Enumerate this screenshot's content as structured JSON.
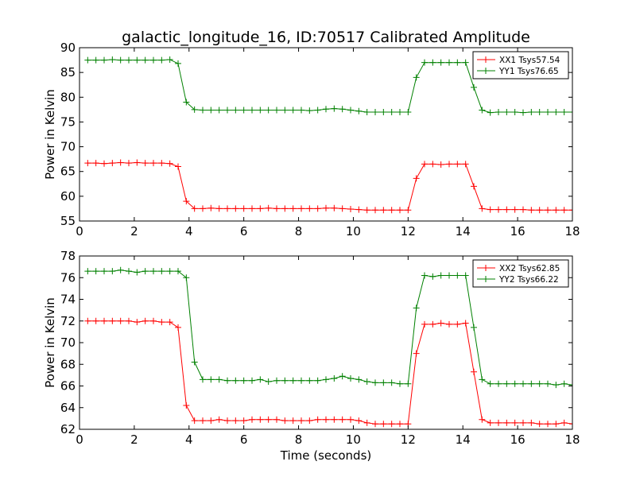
{
  "figure": {
    "title": "galactic_longitude_16, ID:70517 Calibrated Amplitude",
    "xlabel": "Time (seconds)"
  },
  "chart_data": [
    {
      "type": "line",
      "title": "galactic_longitude_16, ID:70517 Calibrated Amplitude",
      "xlabel": "",
      "ylabel": "Power in Kelvin",
      "xlim": [
        0,
        18
      ],
      "ylim": [
        55,
        90
      ],
      "xticks": [
        0,
        2,
        4,
        6,
        8,
        10,
        12,
        14,
        16,
        18
      ],
      "yticks": [
        55,
        60,
        65,
        70,
        75,
        80,
        85,
        90
      ],
      "legend_placement": "top-right",
      "marker": "+",
      "grid": false,
      "x": [
        0.3,
        0.6,
        0.9,
        1.2,
        1.5,
        1.8,
        2.1,
        2.4,
        2.7,
        3.0,
        3.3,
        3.6,
        3.9,
        4.2,
        4.5,
        4.8,
        5.1,
        5.4,
        5.7,
        6.0,
        6.3,
        6.6,
        6.9,
        7.2,
        7.5,
        7.8,
        8.1,
        8.4,
        8.7,
        9.0,
        9.3,
        9.6,
        9.9,
        10.2,
        10.5,
        10.8,
        11.1,
        11.4,
        11.7,
        12.0,
        12.3,
        12.6,
        12.9,
        13.2,
        13.5,
        13.8,
        14.1,
        14.4,
        14.7,
        15.0,
        15.3,
        15.6,
        15.9,
        16.2,
        16.5,
        16.8,
        17.1,
        17.4,
        17.7,
        18.0
      ],
      "series": [
        {
          "name": "XX1 Tsys57.54",
          "color": "#ff0000",
          "values": [
            66.7,
            66.7,
            66.6,
            66.7,
            66.8,
            66.7,
            66.8,
            66.7,
            66.7,
            66.7,
            66.6,
            66.0,
            59.0,
            57.5,
            57.5,
            57.6,
            57.5,
            57.5,
            57.5,
            57.5,
            57.5,
            57.5,
            57.6,
            57.5,
            57.5,
            57.5,
            57.5,
            57.5,
            57.5,
            57.6,
            57.6,
            57.5,
            57.4,
            57.3,
            57.2,
            57.2,
            57.2,
            57.2,
            57.2,
            57.2,
            63.6,
            66.5,
            66.5,
            66.4,
            66.5,
            66.5,
            66.5,
            62.0,
            57.5,
            57.3,
            57.3,
            57.3,
            57.3,
            57.3,
            57.2,
            57.2,
            57.2,
            57.2,
            57.2,
            57.2
          ]
        },
        {
          "name": "YY1 Tsys76.65",
          "color": "#008000",
          "values": [
            87.5,
            87.5,
            87.5,
            87.6,
            87.5,
            87.5,
            87.5,
            87.5,
            87.5,
            87.5,
            87.6,
            86.8,
            79.0,
            77.5,
            77.4,
            77.4,
            77.4,
            77.4,
            77.4,
            77.4,
            77.4,
            77.4,
            77.4,
            77.4,
            77.4,
            77.4,
            77.4,
            77.3,
            77.4,
            77.6,
            77.7,
            77.6,
            77.4,
            77.2,
            77.0,
            77.0,
            77.0,
            77.0,
            77.0,
            77.0,
            84.0,
            87.0,
            87.0,
            87.0,
            87.0,
            87.0,
            87.0,
            82.0,
            77.4,
            76.9,
            77.0,
            77.0,
            77.0,
            76.9,
            77.0,
            77.0,
            77.0,
            77.0,
            77.0,
            77.0
          ]
        }
      ]
    },
    {
      "type": "line",
      "title": "",
      "xlabel": "Time (seconds)",
      "ylabel": "Power in Kelvin",
      "xlim": [
        0,
        18
      ],
      "ylim": [
        62,
        78
      ],
      "xticks": [
        0,
        2,
        4,
        6,
        8,
        10,
        12,
        14,
        16,
        18
      ],
      "yticks": [
        62,
        64,
        66,
        68,
        70,
        72,
        74,
        76,
        78
      ],
      "legend_placement": "top-right",
      "marker": "+",
      "grid": false,
      "x": [
        0.3,
        0.6,
        0.9,
        1.2,
        1.5,
        1.8,
        2.1,
        2.4,
        2.7,
        3.0,
        3.3,
        3.6,
        3.9,
        4.2,
        4.5,
        4.8,
        5.1,
        5.4,
        5.7,
        6.0,
        6.3,
        6.6,
        6.9,
        7.2,
        7.5,
        7.8,
        8.1,
        8.4,
        8.7,
        9.0,
        9.3,
        9.6,
        9.9,
        10.2,
        10.5,
        10.8,
        11.1,
        11.4,
        11.7,
        12.0,
        12.3,
        12.6,
        12.9,
        13.2,
        13.5,
        13.8,
        14.1,
        14.4,
        14.7,
        15.0,
        15.3,
        15.6,
        15.9,
        16.2,
        16.5,
        16.8,
        17.1,
        17.4,
        17.7,
        18.0
      ],
      "series": [
        {
          "name": "XX2 Tsys62.85",
          "color": "#ff0000",
          "values": [
            72.0,
            72.0,
            72.0,
            72.0,
            72.0,
            72.0,
            71.9,
            72.0,
            72.0,
            71.9,
            71.9,
            71.4,
            64.2,
            62.8,
            62.8,
            62.8,
            62.9,
            62.8,
            62.8,
            62.8,
            62.9,
            62.9,
            62.9,
            62.9,
            62.8,
            62.8,
            62.8,
            62.8,
            62.9,
            62.9,
            62.9,
            62.9,
            62.9,
            62.8,
            62.6,
            62.5,
            62.5,
            62.5,
            62.5,
            62.5,
            69.0,
            71.7,
            71.7,
            71.8,
            71.7,
            71.7,
            71.8,
            67.3,
            62.9,
            62.6,
            62.6,
            62.6,
            62.6,
            62.6,
            62.6,
            62.5,
            62.5,
            62.5,
            62.6,
            62.5
          ]
        },
        {
          "name": "YY2 Tsys66.22",
          "color": "#008000",
          "values": [
            76.6,
            76.6,
            76.6,
            76.6,
            76.7,
            76.6,
            76.5,
            76.6,
            76.6,
            76.6,
            76.6,
            76.6,
            76.0,
            68.2,
            66.6,
            66.6,
            66.6,
            66.5,
            66.5,
            66.5,
            66.5,
            66.6,
            66.4,
            66.5,
            66.5,
            66.5,
            66.5,
            66.5,
            66.5,
            66.6,
            66.7,
            66.9,
            66.7,
            66.6,
            66.4,
            66.3,
            66.3,
            66.3,
            66.2,
            66.2,
            73.2,
            76.2,
            76.1,
            76.2,
            76.2,
            76.2,
            76.2,
            71.4,
            66.6,
            66.2,
            66.2,
            66.2,
            66.2,
            66.2,
            66.2,
            66.2,
            66.2,
            66.1,
            66.2,
            66.1
          ]
        }
      ]
    }
  ]
}
